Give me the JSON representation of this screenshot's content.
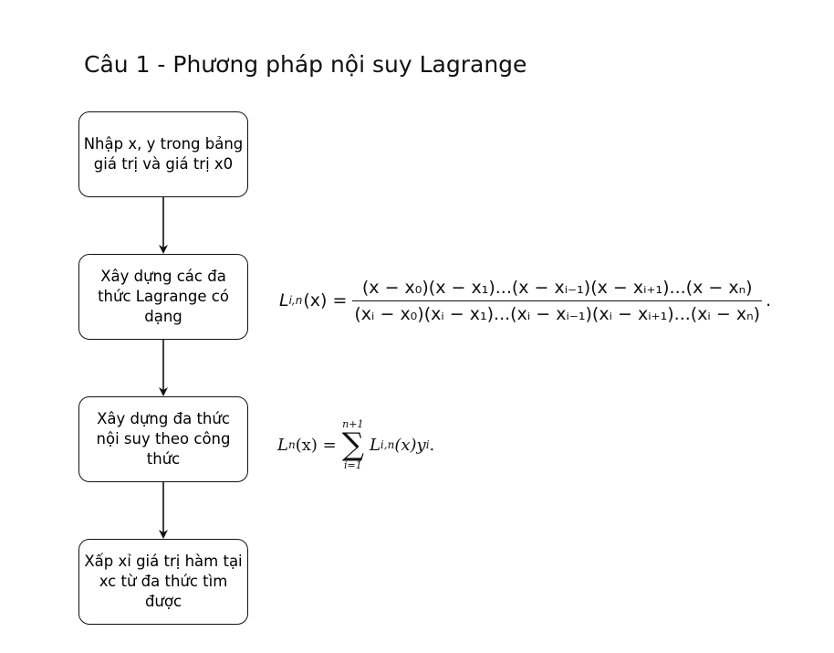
{
  "title": "Câu 1 - Phương pháp nội suy Lagrange",
  "steps": [
    "Nhập x, y trong bảng giá trị và giá trị x0",
    "Xây dựng các đa thức Lagrange có dạng",
    "Xây dựng đa thức nội suy theo công thức",
    "Xấp xỉ giá trị hàm tại xc từ đa thức tìm được"
  ],
  "formula_lagrange_basis": {
    "lhs": "L",
    "lhs_sub": "i,n",
    "arg": "(x) =",
    "numerator": "(x − x₀)(x − x₁)...(x − xᵢ₋₁)(x − xᵢ₊₁)...(x − xₙ)",
    "denominator": "(xᵢ − x₀)(xᵢ − x₁)...(xᵢ − xᵢ₋₁)(xᵢ − xᵢ₊₁)...(xᵢ − xₙ)",
    "end": "."
  },
  "formula_interpolation": {
    "lhs": "L",
    "lhs_sub": "n",
    "arg": "(x) =",
    "upper": "n+1",
    "lower": "i=1",
    "term": "L",
    "term_sub": "i,n",
    "tail": "(x)y",
    "tail_sub": "i",
    "end": "."
  }
}
